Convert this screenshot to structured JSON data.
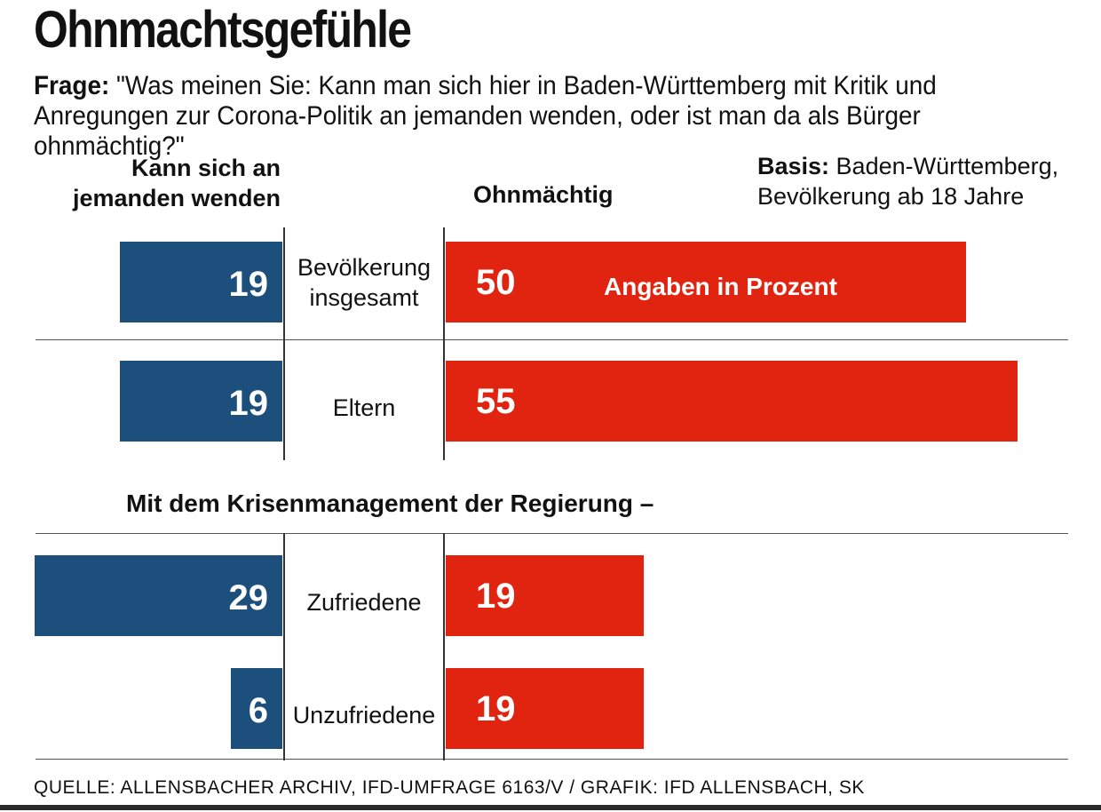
{
  "title": "Ohnmachtsgefühle",
  "question": {
    "label": "Frage:",
    "text": " \"Was meinen Sie: Kann man sich hier in Baden-Württemberg mit Kritik und Anregungen zur Corona-Politik an jemanden wenden, oder ist man da als Bürger ohnmächtig?\""
  },
  "basis": {
    "label": "Basis:",
    "line1": " Baden-Württemberg,",
    "line2": "Bevölkerung ab 18 Jahre"
  },
  "unit_note": "Angaben in Prozent",
  "section_subtitle": "Mit dem Krisenmanagement der Regierung –",
  "source": "QUELLE: ALLENSBACHER ARCHIV, IFD-UMFRAGE 6163/V / GRAFIK: IFD ALLENSBACH, SK",
  "colors": {
    "left": "#1d4f7c",
    "right": "#e0240f"
  },
  "chart_data": {
    "type": "bar",
    "title": "Ohnmachtsgefühle",
    "series": [
      {
        "name": "Kann sich an jemanden wenden",
        "values": [
          19,
          19,
          29,
          6
        ]
      },
      {
        "name": "Ohnmächtig",
        "values": [
          50,
          55,
          19,
          19
        ]
      }
    ],
    "categories": [
      "Bevölkerung insgesamt",
      "Eltern",
      "Zufriedene",
      "Unzufriedene"
    ],
    "category_lines": [
      [
        "Bevölkerung",
        "insgesamt"
      ],
      [
        "Eltern"
      ],
      [
        "Zufriedene"
      ],
      [
        "Unzufriedene"
      ]
    ],
    "groups": [
      "",
      "",
      "Mit dem Krisenmanagement der Regierung –",
      "Mit dem Krisenmanagement der Regierung –"
    ],
    "unit": "Angaben in Prozent"
  }
}
